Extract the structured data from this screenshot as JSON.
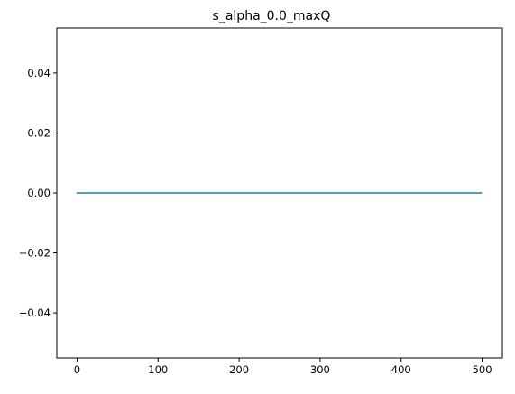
{
  "chart_data": {
    "type": "line",
    "title": "s_alpha_0.0_maxQ",
    "xlabel": "",
    "ylabel": "",
    "xlim": [
      -25,
      525
    ],
    "ylim": [
      -0.055,
      0.055
    ],
    "x_ticks": [
      {
        "value": 0,
        "label": "0"
      },
      {
        "value": 100,
        "label": "100"
      },
      {
        "value": 200,
        "label": "200"
      },
      {
        "value": 300,
        "label": "300"
      },
      {
        "value": 400,
        "label": "400"
      },
      {
        "value": 500,
        "label": "500"
      }
    ],
    "y_ticks": [
      {
        "value": -0.04,
        "label": "−0.04"
      },
      {
        "value": -0.02,
        "label": "−0.02"
      },
      {
        "value": 0.0,
        "label": "0.00"
      },
      {
        "value": 0.02,
        "label": "0.02"
      },
      {
        "value": 0.04,
        "label": "0.04"
      }
    ],
    "grid": false,
    "series": [
      {
        "color": "#1f77b4",
        "x": [
          0,
          499
        ],
        "y": [
          0.0,
          0.0
        ]
      }
    ]
  }
}
